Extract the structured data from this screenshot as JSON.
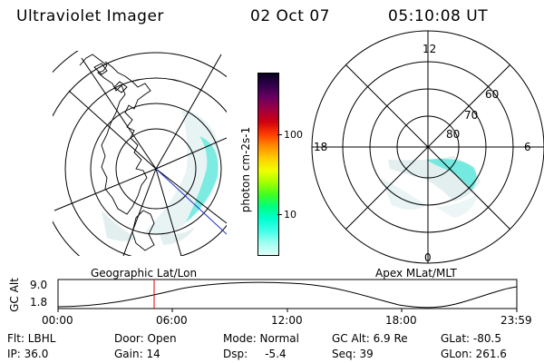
{
  "header": {
    "instrument": "Ultraviolet Imager",
    "date": "02 Oct 07",
    "time": "05:10:08 UT"
  },
  "colorbar": {
    "unit_label": "photon cm-2s-1",
    "ticks": [
      "100",
      "10"
    ],
    "colors": [
      "#0a0020",
      "#33004d",
      "#6a0060",
      "#a00040",
      "#d00010",
      "#ff3a00",
      "#ff8c00",
      "#ffcc00",
      "#f0ff00",
      "#a6ff00",
      "#40ff20",
      "#00ff80",
      "#00ffd0",
      "#40ffe8",
      "#a0fff0",
      "#e0fff8"
    ]
  },
  "left_panel": {
    "caption": "Geographic Lat/Lon"
  },
  "right_panel": {
    "caption": "Apex MLat/MLT",
    "mlt_labels": {
      "top": "12",
      "left": "18",
      "right": "6",
      "bottom": "0"
    },
    "lat_labels": [
      "60",
      "70",
      "80"
    ]
  },
  "altitude_plot": {
    "ylabel": "GC Alt",
    "yticks": [
      "9.0",
      "1.8"
    ],
    "xticks": [
      "00:00",
      "06:00",
      "12:00",
      "18:00",
      "23:59"
    ],
    "marker_color": "#e00000"
  },
  "info": {
    "flt": "Flt: LBHL",
    "ip": "IP: 36.0",
    "door": "Door: Open",
    "gain": "Gain: 14",
    "mode": "Mode: Normal",
    "dsp": "Dsp:     -5.4",
    "gcalt": "GC Alt: 6.9 Re",
    "seq": "Seq: 39",
    "glat": "GLat: -80.5",
    "glon": "GLon: 261.6"
  }
}
